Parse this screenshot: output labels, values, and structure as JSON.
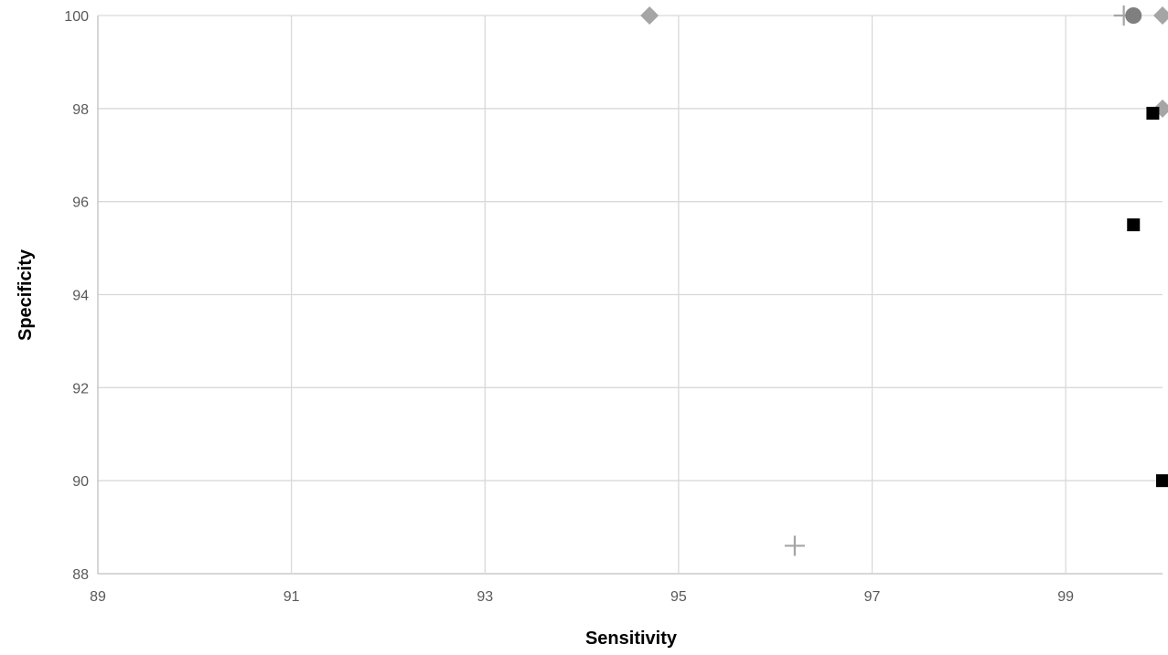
{
  "chart_data": {
    "type": "scatter",
    "title": "",
    "xlabel": "Sensitivity",
    "ylabel": "Specificity",
    "xlim": [
      89,
      100
    ],
    "ylim": [
      88,
      100
    ],
    "x_ticks": [
      "89",
      "91",
      "93",
      "95",
      "97",
      "99"
    ],
    "x_tick_values": [
      89,
      91,
      93,
      95,
      97,
      99
    ],
    "y_ticks": [
      "88",
      "90",
      "92",
      "94",
      "96",
      "98",
      "100"
    ],
    "y_tick_values": [
      88,
      90,
      92,
      94,
      96,
      98,
      100
    ],
    "grid": true,
    "legend": "none",
    "series": [
      {
        "marker": "diamond",
        "color": "#a5a5a5",
        "points": [
          {
            "x": 94.7,
            "y": 100
          },
          {
            "x": 100,
            "y": 100
          },
          {
            "x": 100,
            "y": 98
          }
        ]
      },
      {
        "marker": "square",
        "color": "#000000",
        "points": [
          {
            "x": 99.9,
            "y": 97.9
          },
          {
            "x": 99.7,
            "y": 95.5
          },
          {
            "x": 100,
            "y": 90
          }
        ]
      },
      {
        "marker": "cross",
        "color": "#a5a5a5",
        "points": [
          {
            "x": 99.6,
            "y": 100
          },
          {
            "x": 96.2,
            "y": 88.6
          }
        ]
      },
      {
        "marker": "circle",
        "color": "#7f7f7f",
        "points": [
          {
            "x": 99.7,
            "y": 100
          }
        ]
      }
    ]
  }
}
